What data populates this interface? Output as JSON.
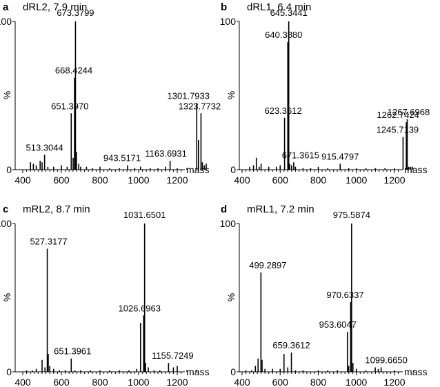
{
  "chart_data": [
    {
      "type": "bar",
      "panel_letter": "a",
      "title": "dRL2, 7.9 min",
      "xlabel": "mass",
      "ylabel": "%",
      "xlim": [
        400,
        1400
      ],
      "ylim": [
        0,
        100
      ],
      "xticks": [
        "400",
        "600",
        "800",
        "1000",
        "1200"
      ],
      "yticks": [
        "0",
        "100"
      ],
      "grid": false,
      "peaks": [
        {
          "x": 440,
          "y": 5
        },
        {
          "x": 455,
          "y": 4
        },
        {
          "x": 470,
          "y": 3
        },
        {
          "x": 490,
          "y": 6
        },
        {
          "x": 500,
          "y": 5
        },
        {
          "x": 513,
          "y": 10
        },
        {
          "x": 530,
          "y": 2
        },
        {
          "x": 560,
          "y": 2
        },
        {
          "x": 600,
          "y": 3
        },
        {
          "x": 630,
          "y": 2
        },
        {
          "x": 651,
          "y": 38
        },
        {
          "x": 661,
          "y": 8
        },
        {
          "x": 668,
          "y": 62
        },
        {
          "x": 673,
          "y": 100
        },
        {
          "x": 678,
          "y": 12
        },
        {
          "x": 690,
          "y": 4
        },
        {
          "x": 700,
          "y": 2
        },
        {
          "x": 730,
          "y": 2
        },
        {
          "x": 760,
          "y": 1
        },
        {
          "x": 800,
          "y": 2
        },
        {
          "x": 850,
          "y": 1
        },
        {
          "x": 900,
          "y": 1
        },
        {
          "x": 943,
          "y": 3
        },
        {
          "x": 980,
          "y": 1
        },
        {
          "x": 1010,
          "y": 2
        },
        {
          "x": 1060,
          "y": 1
        },
        {
          "x": 1100,
          "y": 1
        },
        {
          "x": 1140,
          "y": 2
        },
        {
          "x": 1163,
          "y": 6
        },
        {
          "x": 1200,
          "y": 1
        },
        {
          "x": 1250,
          "y": 1
        },
        {
          "x": 1301,
          "y": 45
        },
        {
          "x": 1310,
          "y": 20
        },
        {
          "x": 1323,
          "y": 38
        },
        {
          "x": 1330,
          "y": 5
        },
        {
          "x": 1340,
          "y": 3
        },
        {
          "x": 1350,
          "y": 4
        }
      ],
      "labels": [
        {
          "x": 673,
          "y": 100,
          "text": "673.3799"
        },
        {
          "x": 668,
          "y": 62,
          "text": "668.4244"
        },
        {
          "x": 651,
          "y": 38,
          "text": "651.3970"
        },
        {
          "x": 513,
          "y": 10,
          "text": "513.3044"
        },
        {
          "x": 943,
          "y": 3,
          "text": "943.5171"
        },
        {
          "x": 1163,
          "y": 6,
          "text": "1163.6931"
        },
        {
          "x": 1301,
          "y": 45,
          "text": "1301.7933"
        },
        {
          "x": 1323,
          "y": 38,
          "text": "1323.7732"
        }
      ]
    },
    {
      "type": "bar",
      "panel_letter": "b",
      "title": "dRL1, 6.4 min",
      "xlabel": "mass",
      "ylabel": "%",
      "xlim": [
        400,
        1400
      ],
      "ylim": [
        0,
        100
      ],
      "xticks": [
        "400",
        "600",
        "800",
        "1000",
        "1200"
      ],
      "yticks": [
        "0",
        "100"
      ],
      "grid": false,
      "peaks": [
        {
          "x": 440,
          "y": 2
        },
        {
          "x": 460,
          "y": 3
        },
        {
          "x": 475,
          "y": 8
        },
        {
          "x": 490,
          "y": 2
        },
        {
          "x": 500,
          "y": 4
        },
        {
          "x": 540,
          "y": 2
        },
        {
          "x": 580,
          "y": 2
        },
        {
          "x": 600,
          "y": 3
        },
        {
          "x": 623,
          "y": 35
        },
        {
          "x": 640,
          "y": 86
        },
        {
          "x": 645,
          "y": 100
        },
        {
          "x": 650,
          "y": 4
        },
        {
          "x": 660,
          "y": 3
        },
        {
          "x": 671,
          "y": 5
        },
        {
          "x": 680,
          "y": 2
        },
        {
          "x": 720,
          "y": 1
        },
        {
          "x": 760,
          "y": 1
        },
        {
          "x": 800,
          "y": 2
        },
        {
          "x": 850,
          "y": 1
        },
        {
          "x": 915,
          "y": 4
        },
        {
          "x": 960,
          "y": 1
        },
        {
          "x": 1000,
          "y": 1
        },
        {
          "x": 1050,
          "y": 1
        },
        {
          "x": 1100,
          "y": 1
        },
        {
          "x": 1150,
          "y": 1
        },
        {
          "x": 1200,
          "y": 1
        },
        {
          "x": 1245,
          "y": 22
        },
        {
          "x": 1262,
          "y": 32
        },
        {
          "x": 1267,
          "y": 34
        },
        {
          "x": 1275,
          "y": 2
        },
        {
          "x": 1285,
          "y": 2
        },
        {
          "x": 1295,
          "y": 2
        }
      ],
      "labels": [
        {
          "x": 645,
          "y": 100,
          "text": "645.3441"
        },
        {
          "x": 640,
          "y": 86,
          "text": "640.3880"
        },
        {
          "x": 623,
          "y": 35,
          "text": "623.3612"
        },
        {
          "x": 671,
          "y": 5,
          "text": "671.3615"
        },
        {
          "x": 915,
          "y": 4,
          "text": "915.4797"
        },
        {
          "x": 1245,
          "y": 22,
          "text": "1245.7139"
        },
        {
          "x": 1262,
          "y": 32,
          "text": "1262.7424"
        },
        {
          "x": 1267,
          "y": 34,
          "text": "1267.6968"
        }
      ]
    },
    {
      "type": "bar",
      "panel_letter": "c",
      "title": "mRL2, 8.7 min",
      "xlabel": "mass",
      "ylabel": "%",
      "xlim": [
        400,
        1400
      ],
      "ylim": [
        0,
        100
      ],
      "xticks": [
        "400",
        "600",
        "800",
        "1000",
        "1200"
      ],
      "yticks": [
        "0",
        "100"
      ],
      "grid": false,
      "peaks": [
        {
          "x": 420,
          "y": 1
        },
        {
          "x": 450,
          "y": 1
        },
        {
          "x": 470,
          "y": 2
        },
        {
          "x": 500,
          "y": 8
        },
        {
          "x": 515,
          "y": 3
        },
        {
          "x": 527,
          "y": 83
        },
        {
          "x": 532,
          "y": 12
        },
        {
          "x": 540,
          "y": 4
        },
        {
          "x": 560,
          "y": 2
        },
        {
          "x": 590,
          "y": 1
        },
        {
          "x": 620,
          "y": 1
        },
        {
          "x": 651,
          "y": 9
        },
        {
          "x": 670,
          "y": 1
        },
        {
          "x": 700,
          "y": 1
        },
        {
          "x": 750,
          "y": 1
        },
        {
          "x": 800,
          "y": 1
        },
        {
          "x": 850,
          "y": 1
        },
        {
          "x": 900,
          "y": 1
        },
        {
          "x": 950,
          "y": 1
        },
        {
          "x": 990,
          "y": 2
        },
        {
          "x": 1010,
          "y": 33
        },
        {
          "x": 1026,
          "y": 38
        },
        {
          "x": 1031,
          "y": 100
        },
        {
          "x": 1036,
          "y": 6
        },
        {
          "x": 1050,
          "y": 3
        },
        {
          "x": 1080,
          "y": 1
        },
        {
          "x": 1110,
          "y": 1
        },
        {
          "x": 1155,
          "y": 6
        },
        {
          "x": 1180,
          "y": 3
        },
        {
          "x": 1200,
          "y": 4
        },
        {
          "x": 1250,
          "y": 1
        },
        {
          "x": 1300,
          "y": 1
        }
      ],
      "labels": [
        {
          "x": 1031,
          "y": 100,
          "text": "1031.6501"
        },
        {
          "x": 527,
          "y": 83,
          "text": "527.3177"
        },
        {
          "x": 1026,
          "y": 38,
          "text": "1026.6963"
        },
        {
          "x": 651,
          "y": 9,
          "text": "651.3961"
        },
        {
          "x": 1155,
          "y": 6,
          "text": "1155.7249"
        }
      ]
    },
    {
      "type": "bar",
      "panel_letter": "d",
      "title": "mRL1, 7.2 min",
      "xlabel": "mass",
      "ylabel": "%",
      "xlim": [
        400,
        1400
      ],
      "ylim": [
        0,
        100
      ],
      "xticks": [
        "400",
        "600",
        "800",
        "1000",
        "1200"
      ],
      "yticks": [
        "0",
        "100"
      ],
      "grid": false,
      "peaks": [
        {
          "x": 420,
          "y": 1
        },
        {
          "x": 450,
          "y": 1
        },
        {
          "x": 470,
          "y": 4
        },
        {
          "x": 484,
          "y": 9
        },
        {
          "x": 499,
          "y": 67
        },
        {
          "x": 505,
          "y": 8
        },
        {
          "x": 520,
          "y": 2
        },
        {
          "x": 560,
          "y": 2
        },
        {
          "x": 600,
          "y": 2
        },
        {
          "x": 620,
          "y": 12
        },
        {
          "x": 640,
          "y": 3
        },
        {
          "x": 659,
          "y": 13
        },
        {
          "x": 680,
          "y": 1
        },
        {
          "x": 720,
          "y": 1
        },
        {
          "x": 800,
          "y": 1
        },
        {
          "x": 850,
          "y": 1
        },
        {
          "x": 900,
          "y": 1
        },
        {
          "x": 953,
          "y": 27
        },
        {
          "x": 960,
          "y": 4
        },
        {
          "x": 970,
          "y": 47
        },
        {
          "x": 975,
          "y": 100
        },
        {
          "x": 982,
          "y": 6
        },
        {
          "x": 1000,
          "y": 2
        },
        {
          "x": 1050,
          "y": 1
        },
        {
          "x": 1099,
          "y": 3
        },
        {
          "x": 1115,
          "y": 2
        },
        {
          "x": 1130,
          "y": 3
        },
        {
          "x": 1200,
          "y": 1
        },
        {
          "x": 1300,
          "y": 1
        }
      ],
      "labels": [
        {
          "x": 975,
          "y": 100,
          "text": "975.5874"
        },
        {
          "x": 499,
          "y": 67,
          "text": "499.2897"
        },
        {
          "x": 970,
          "y": 47,
          "text": "970.6337"
        },
        {
          "x": 953,
          "y": 27,
          "text": "953.6047"
        },
        {
          "x": 659,
          "y": 13,
          "text": "659.3612"
        },
        {
          "x": 1099,
          "y": 3,
          "text": "1099.6650"
        }
      ]
    }
  ]
}
